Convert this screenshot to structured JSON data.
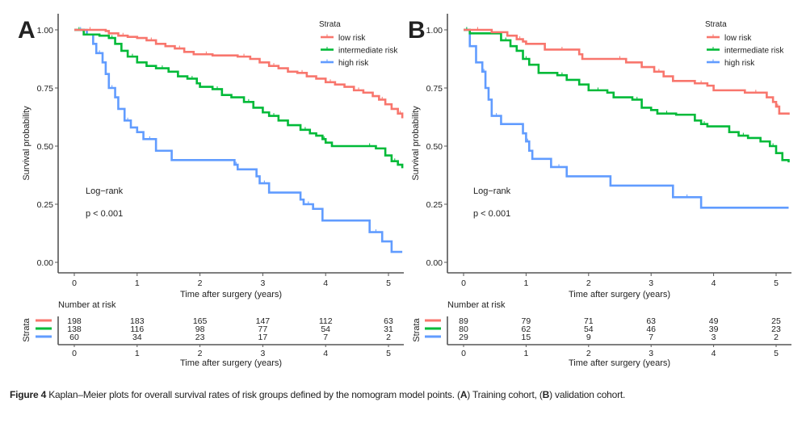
{
  "caption": {
    "label": "Figure 4",
    "text_1": " Kaplan–Meier plots for overall survival rates of risk groups defined by the nomogram model points. (",
    "a": "A",
    "text_2": ") Training cohort, (",
    "b": "B",
    "text_3": ") validation cohort."
  },
  "chart_data": [
    {
      "type": "line",
      "subtype": "kaplan-meier-step",
      "panel": "A",
      "title": "",
      "xlabel": "Time after surgery (years)",
      "ylabel": "Survival probability",
      "xlim": [
        -0.2,
        5.2
      ],
      "ylim": [
        -0.04,
        1.04
      ],
      "xticks": [
        "0",
        "1",
        "2",
        "3",
        "4",
        "5"
      ],
      "yticks": [
        "0.00",
        "0.25",
        "0.50",
        "0.75",
        "1.00"
      ],
      "grid": false,
      "legend": {
        "title": "Strata",
        "position": "top-right"
      },
      "annotations": [
        "Log−rank",
        "p < 0.001"
      ],
      "series": [
        {
          "name": "low risk",
          "color": "#F8766D",
          "x": [
            0,
            0.5,
            0.55,
            0.7,
            0.85,
            1.0,
            1.15,
            1.3,
            1.45,
            1.6,
            1.75,
            1.9,
            2.0,
            2.2,
            2.5,
            2.6,
            2.8,
            2.95,
            3.1,
            3.25,
            3.4,
            3.55,
            3.7,
            3.85,
            4.0,
            4.15,
            4.3,
            4.45,
            4.6,
            4.75,
            4.85,
            4.95,
            5.05,
            5.15,
            5.22
          ],
          "y": [
            1.0,
            0.995,
            0.985,
            0.975,
            0.97,
            0.965,
            0.955,
            0.94,
            0.93,
            0.92,
            0.905,
            0.895,
            0.895,
            0.89,
            0.89,
            0.885,
            0.875,
            0.86,
            0.845,
            0.835,
            0.82,
            0.815,
            0.8,
            0.79,
            0.775,
            0.765,
            0.755,
            0.74,
            0.73,
            0.715,
            0.7,
            0.68,
            0.66,
            0.64,
            0.62
          ]
        },
        {
          "name": "intermediate risk",
          "color": "#00BA38",
          "x": [
            0,
            0.15,
            0.4,
            0.55,
            0.65,
            0.75,
            0.85,
            1.0,
            1.15,
            1.3,
            1.5,
            1.65,
            1.8,
            1.95,
            2.0,
            2.2,
            2.35,
            2.5,
            2.7,
            2.85,
            3.0,
            3.1,
            3.25,
            3.4,
            3.6,
            3.75,
            3.85,
            3.95,
            4.0,
            4.1,
            4.6,
            4.8,
            4.95,
            5.05,
            5.15,
            5.22
          ],
          "y": [
            1.0,
            0.98,
            0.975,
            0.965,
            0.94,
            0.91,
            0.885,
            0.86,
            0.845,
            0.835,
            0.82,
            0.8,
            0.79,
            0.77,
            0.755,
            0.745,
            0.72,
            0.71,
            0.69,
            0.665,
            0.645,
            0.63,
            0.61,
            0.59,
            0.57,
            0.555,
            0.545,
            0.53,
            0.515,
            0.5,
            0.5,
            0.49,
            0.46,
            0.435,
            0.42,
            0.405
          ]
        },
        {
          "name": "high risk",
          "color": "#619CFF",
          "x": [
            0,
            0.2,
            0.3,
            0.35,
            0.45,
            0.5,
            0.55,
            0.65,
            0.7,
            0.8,
            0.9,
            1.0,
            1.1,
            1.3,
            1.55,
            2.55,
            2.6,
            2.9,
            2.95,
            3.1,
            3.6,
            3.65,
            3.8,
            3.95,
            4.7,
            4.9,
            5.05,
            5.22
          ],
          "y": [
            1.0,
            0.98,
            0.94,
            0.9,
            0.86,
            0.81,
            0.75,
            0.71,
            0.66,
            0.61,
            0.58,
            0.56,
            0.53,
            0.48,
            0.44,
            0.42,
            0.4,
            0.37,
            0.34,
            0.3,
            0.27,
            0.25,
            0.23,
            0.18,
            0.13,
            0.09,
            0.045,
            0.045
          ]
        }
      ],
      "risk_table": {
        "title": "Number at risk",
        "ylabel": "Strata",
        "xlabel": "Time after surgery (years)",
        "times": [
          "0",
          "1",
          "2",
          "3",
          "4",
          "5"
        ],
        "rows": [
          {
            "name": "low risk",
            "color": "#F8766D",
            "values": [
              "198",
              "183",
              "165",
              "147",
              "112",
              "63"
            ]
          },
          {
            "name": "intermediate risk",
            "color": "#00BA38",
            "values": [
              "138",
              "116",
              "98",
              "77",
              "54",
              "31"
            ]
          },
          {
            "name": "high risk",
            "color": "#619CFF",
            "values": [
              "60",
              "34",
              "23",
              "17",
              "7",
              "2"
            ]
          }
        ]
      }
    },
    {
      "type": "line",
      "subtype": "kaplan-meier-step",
      "panel": "B",
      "title": "",
      "xlabel": "Time after surgery (years)",
      "ylabel": "Survival probability",
      "xlim": [
        -0.2,
        5.2
      ],
      "ylim": [
        -0.04,
        1.04
      ],
      "xticks": [
        "0",
        "1",
        "2",
        "3",
        "4",
        "5"
      ],
      "yticks": [
        "0.00",
        "0.25",
        "0.50",
        "0.75",
        "1.00"
      ],
      "grid": false,
      "legend": {
        "title": "Strata",
        "position": "top-right"
      },
      "annotations": [
        "Log−rank",
        "p < 0.001"
      ],
      "series": [
        {
          "name": "low risk",
          "color": "#F8766D",
          "x": [
            0,
            0.45,
            0.7,
            0.85,
            0.95,
            1.0,
            1.3,
            1.85,
            1.9,
            2.4,
            2.6,
            2.85,
            3.05,
            3.2,
            3.35,
            3.7,
            3.9,
            4.0,
            4.5,
            4.85,
            4.95,
            5.0,
            5.05,
            5.2
          ],
          "y": [
            1.0,
            0.99,
            0.975,
            0.96,
            0.95,
            0.94,
            0.915,
            0.895,
            0.875,
            0.875,
            0.86,
            0.84,
            0.82,
            0.8,
            0.78,
            0.77,
            0.76,
            0.74,
            0.73,
            0.71,
            0.69,
            0.67,
            0.64,
            0.635
          ]
        },
        {
          "name": "intermediate risk",
          "color": "#00BA38",
          "x": [
            0,
            0.1,
            0.45,
            0.6,
            0.75,
            0.85,
            0.95,
            1.05,
            1.2,
            1.5,
            1.65,
            1.85,
            2.0,
            2.3,
            2.4,
            2.7,
            2.85,
            3.0,
            3.1,
            3.4,
            3.7,
            3.8,
            3.9,
            4.25,
            4.4,
            4.55,
            4.75,
            4.9,
            5.0,
            5.1,
            5.2
          ],
          "y": [
            1.0,
            0.985,
            0.985,
            0.955,
            0.93,
            0.91,
            0.875,
            0.85,
            0.815,
            0.805,
            0.785,
            0.765,
            0.74,
            0.73,
            0.71,
            0.7,
            0.665,
            0.655,
            0.64,
            0.635,
            0.61,
            0.595,
            0.585,
            0.56,
            0.545,
            0.535,
            0.52,
            0.5,
            0.47,
            0.44,
            0.43
          ]
        },
        {
          "name": "high risk",
          "color": "#619CFF",
          "x": [
            0,
            0.1,
            0.2,
            0.3,
            0.35,
            0.4,
            0.45,
            0.6,
            0.95,
            1.0,
            1.05,
            1.1,
            1.4,
            1.65,
            2.35,
            3.35,
            3.8,
            5.2
          ],
          "y": [
            1.0,
            0.93,
            0.86,
            0.82,
            0.75,
            0.7,
            0.63,
            0.595,
            0.555,
            0.52,
            0.48,
            0.445,
            0.41,
            0.37,
            0.33,
            0.28,
            0.235,
            0.235
          ]
        }
      ],
      "risk_table": {
        "title": "Number at risk",
        "ylabel": "Strata",
        "xlabel": "Time after surgery (years)",
        "times": [
          "0",
          "1",
          "2",
          "3",
          "4",
          "5"
        ],
        "rows": [
          {
            "name": "low risk",
            "color": "#F8766D",
            "values": [
              "89",
              "79",
              "71",
              "63",
              "49",
              "25"
            ]
          },
          {
            "name": "intermediate risk",
            "color": "#00BA38",
            "values": [
              "80",
              "62",
              "54",
              "46",
              "39",
              "23"
            ]
          },
          {
            "name": "high risk",
            "color": "#619CFF",
            "values": [
              "29",
              "15",
              "9",
              "7",
              "3",
              "2"
            ]
          }
        ]
      }
    }
  ]
}
